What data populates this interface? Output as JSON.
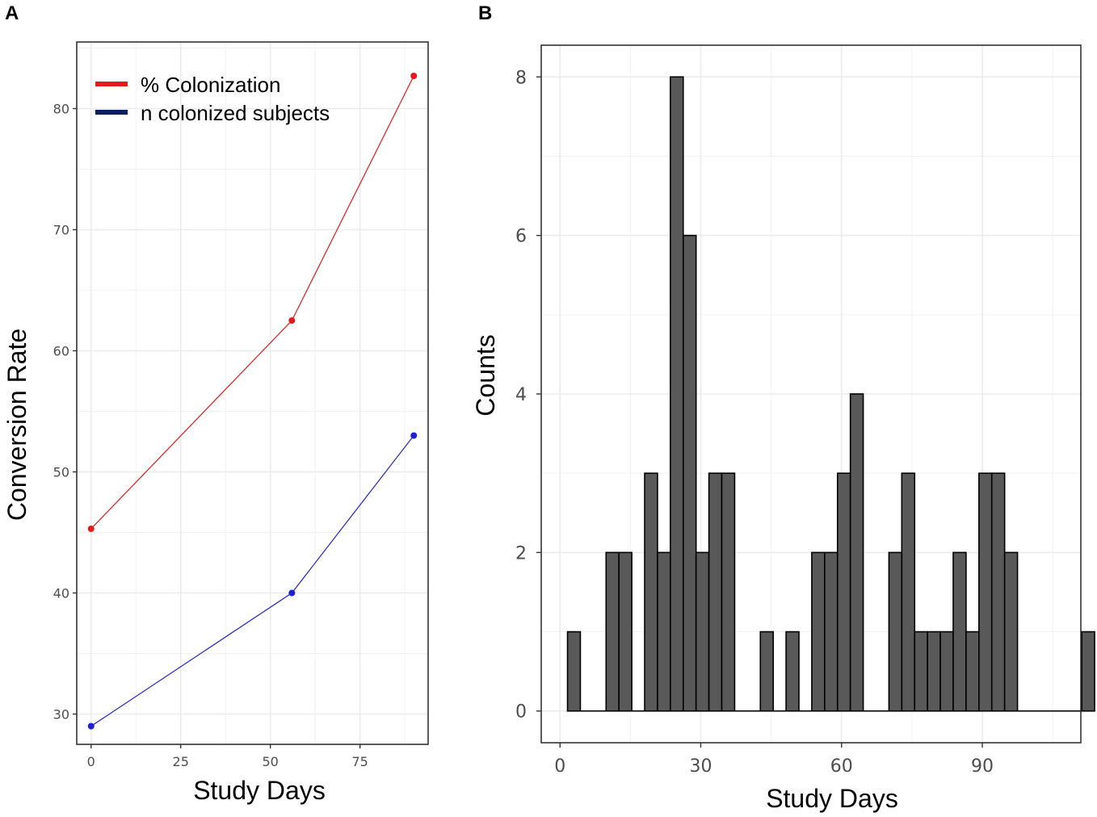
{
  "panels": {
    "a": {
      "letter": "A"
    },
    "b": {
      "letter": "B"
    }
  },
  "chart_data": [
    {
      "type": "line",
      "panel": "A",
      "title": "",
      "xlabel": "Study Days",
      "ylabel": "Conversion Rate",
      "xlim": [
        -4,
        94
      ],
      "ylim": [
        27.5,
        85.5
      ],
      "xticks": [
        0,
        25,
        50,
        75
      ],
      "xtick_labels": [
        "0",
        "25",
        "50",
        "75"
      ],
      "yticks": [
        30,
        40,
        50,
        60,
        70,
        80
      ],
      "ytick_labels": [
        "30",
        "40",
        "50",
        "60",
        "70",
        "80"
      ],
      "grid": true,
      "legend_position": "top-left",
      "series": [
        {
          "name": "% Colonization",
          "color": "#e41a1c",
          "x": [
            0,
            56,
            90
          ],
          "y": [
            45.3,
            62.5,
            82.7
          ]
        },
        {
          "name": "n colonized subjects",
          "color": "#1f1fd6",
          "legend_color": "#0b1f5c",
          "x": [
            0,
            56,
            90
          ],
          "y": [
            29.0,
            40.0,
            53.0
          ]
        }
      ]
    },
    {
      "type": "bar",
      "panel": "B",
      "subtype": "histogram",
      "title": "",
      "xlabel": "Study Days",
      "ylabel": "Counts",
      "xlim": [
        -4,
        111
      ],
      "ylim": [
        -0.4,
        8.4
      ],
      "xticks": [
        0,
        30,
        60,
        90
      ],
      "xtick_labels": [
        "0",
        "30",
        "60",
        "90"
      ],
      "yticks": [
        0,
        2,
        4,
        6,
        8
      ],
      "ytick_labels": [
        "0",
        "2",
        "4",
        "6",
        "8"
      ],
      "grid": true,
      "bar_color": "#595959",
      "bin_start": 1.6,
      "bin_width": 2.74,
      "values": [
        1,
        0,
        0,
        2,
        2,
        0,
        3,
        2,
        8,
        6,
        2,
        3,
        3,
        0,
        0,
        1,
        0,
        1,
        0,
        2,
        2,
        3,
        4,
        0,
        0,
        2,
        3,
        1,
        1,
        1,
        2,
        1,
        3,
        3,
        2,
        0,
        0,
        0,
        0,
        0,
        1
      ]
    }
  ]
}
